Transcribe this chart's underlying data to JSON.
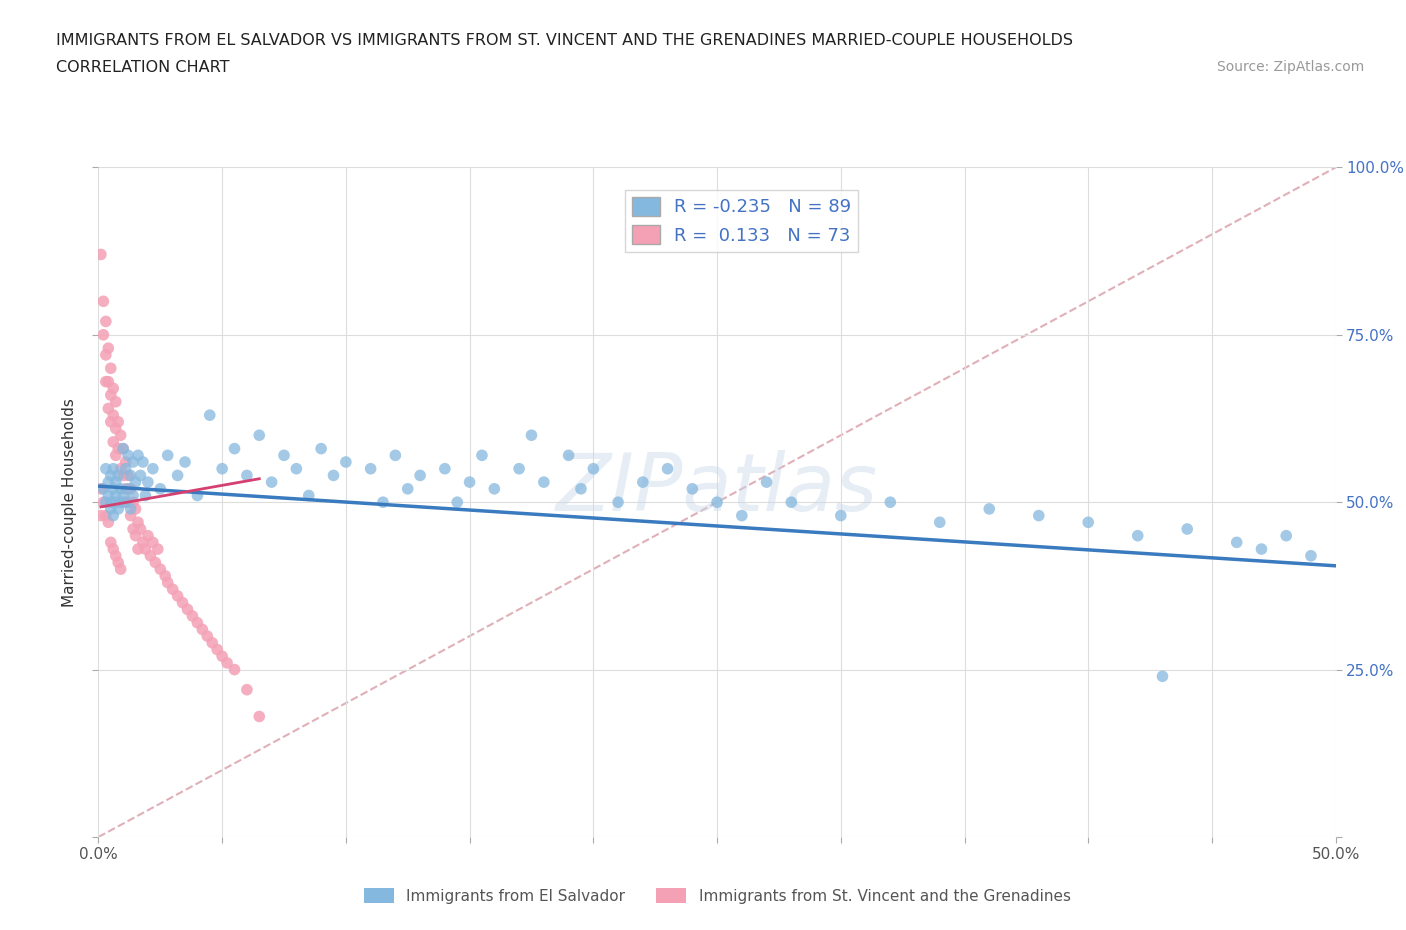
{
  "title_line1": "IMMIGRANTS FROM EL SALVADOR VS IMMIGRANTS FROM ST. VINCENT AND THE GRENADINES MARRIED-COUPLE HOUSEHOLDS",
  "title_line2": "CORRELATION CHART",
  "source": "Source: ZipAtlas.com",
  "ylabel": "Married-couple Households",
  "xlim": [
    0.0,
    0.5
  ],
  "ylim": [
    0.0,
    1.0
  ],
  "xticks": [
    0.0,
    0.05,
    0.1,
    0.15,
    0.2,
    0.25,
    0.3,
    0.35,
    0.4,
    0.45,
    0.5
  ],
  "xticklabels_show": [
    "0.0%",
    "",
    "",
    "",
    "",
    "",
    "",
    "",
    "",
    "",
    "50.0%"
  ],
  "yticks": [
    0.0,
    0.25,
    0.5,
    0.75,
    1.0
  ],
  "yticklabels_right": [
    "",
    "25.0%",
    "50.0%",
    "75.0%",
    "100.0%"
  ],
  "blue_color": "#85b8de",
  "pink_color": "#f4a0b5",
  "blue_line_color": "#3a7abf",
  "pink_line_color": "#d44070",
  "diag_color": "#e0b0b8",
  "R_blue": -0.235,
  "N_blue": 89,
  "R_pink": 0.133,
  "N_pink": 73,
  "legend_blue_label": "Immigrants from El Salvador",
  "legend_pink_label": "Immigrants from St. Vincent and the Grenadines",
  "watermark": "ZIPatlas",
  "blue_scatter_x": [
    0.002,
    0.003,
    0.003,
    0.004,
    0.004,
    0.005,
    0.005,
    0.005,
    0.006,
    0.006,
    0.006,
    0.007,
    0.007,
    0.007,
    0.008,
    0.008,
    0.009,
    0.009,
    0.01,
    0.01,
    0.011,
    0.011,
    0.012,
    0.012,
    0.013,
    0.013,
    0.014,
    0.014,
    0.015,
    0.016,
    0.017,
    0.018,
    0.019,
    0.02,
    0.022,
    0.025,
    0.028,
    0.032,
    0.035,
    0.04,
    0.045,
    0.05,
    0.055,
    0.06,
    0.065,
    0.07,
    0.075,
    0.08,
    0.085,
    0.09,
    0.095,
    0.1,
    0.11,
    0.115,
    0.12,
    0.125,
    0.13,
    0.14,
    0.145,
    0.15,
    0.155,
    0.16,
    0.17,
    0.175,
    0.18,
    0.19,
    0.195,
    0.2,
    0.21,
    0.22,
    0.23,
    0.24,
    0.25,
    0.26,
    0.27,
    0.28,
    0.3,
    0.32,
    0.34,
    0.36,
    0.38,
    0.4,
    0.42,
    0.44,
    0.46,
    0.47,
    0.48,
    0.49,
    0.43
  ],
  "blue_scatter_y": [
    0.52,
    0.5,
    0.55,
    0.51,
    0.53,
    0.5,
    0.54,
    0.49,
    0.52,
    0.55,
    0.48,
    0.51,
    0.53,
    0.5,
    0.54,
    0.49,
    0.52,
    0.5,
    0.58,
    0.51,
    0.55,
    0.5,
    0.57,
    0.52,
    0.54,
    0.49,
    0.56,
    0.51,
    0.53,
    0.57,
    0.54,
    0.56,
    0.51,
    0.53,
    0.55,
    0.52,
    0.57,
    0.54,
    0.56,
    0.51,
    0.63,
    0.55,
    0.58,
    0.54,
    0.6,
    0.53,
    0.57,
    0.55,
    0.51,
    0.58,
    0.54,
    0.56,
    0.55,
    0.5,
    0.57,
    0.52,
    0.54,
    0.55,
    0.5,
    0.53,
    0.57,
    0.52,
    0.55,
    0.6,
    0.53,
    0.57,
    0.52,
    0.55,
    0.5,
    0.53,
    0.55,
    0.52,
    0.5,
    0.48,
    0.53,
    0.5,
    0.48,
    0.5,
    0.47,
    0.49,
    0.48,
    0.47,
    0.45,
    0.46,
    0.44,
    0.43,
    0.45,
    0.42,
    0.24
  ],
  "pink_scatter_x": [
    0.001,
    0.001,
    0.001,
    0.002,
    0.002,
    0.002,
    0.003,
    0.003,
    0.003,
    0.003,
    0.004,
    0.004,
    0.004,
    0.004,
    0.005,
    0.005,
    0.005,
    0.005,
    0.006,
    0.006,
    0.006,
    0.006,
    0.007,
    0.007,
    0.007,
    0.007,
    0.008,
    0.008,
    0.008,
    0.009,
    0.009,
    0.009,
    0.01,
    0.01,
    0.01,
    0.011,
    0.011,
    0.012,
    0.012,
    0.013,
    0.013,
    0.014,
    0.014,
    0.015,
    0.015,
    0.016,
    0.016,
    0.017,
    0.018,
    0.019,
    0.02,
    0.021,
    0.022,
    0.023,
    0.024,
    0.025,
    0.027,
    0.028,
    0.03,
    0.032,
    0.034,
    0.036,
    0.038,
    0.04,
    0.042,
    0.044,
    0.046,
    0.048,
    0.05,
    0.052,
    0.055,
    0.06,
    0.065
  ],
  "pink_scatter_y": [
    0.87,
    0.52,
    0.48,
    0.8,
    0.75,
    0.5,
    0.77,
    0.72,
    0.68,
    0.48,
    0.73,
    0.68,
    0.64,
    0.47,
    0.7,
    0.66,
    0.62,
    0.44,
    0.67,
    0.63,
    0.59,
    0.43,
    0.65,
    0.61,
    0.57,
    0.42,
    0.62,
    0.58,
    0.41,
    0.6,
    0.55,
    0.4,
    0.58,
    0.54,
    0.5,
    0.56,
    0.52,
    0.54,
    0.5,
    0.52,
    0.48,
    0.5,
    0.46,
    0.49,
    0.45,
    0.47,
    0.43,
    0.46,
    0.44,
    0.43,
    0.45,
    0.42,
    0.44,
    0.41,
    0.43,
    0.4,
    0.39,
    0.38,
    0.37,
    0.36,
    0.35,
    0.34,
    0.33,
    0.32,
    0.31,
    0.3,
    0.29,
    0.28,
    0.27,
    0.26,
    0.25,
    0.22,
    0.18
  ],
  "blue_trend_x": [
    0.0,
    0.5
  ],
  "blue_trend_y": [
    0.524,
    0.405
  ],
  "pink_trend_x": [
    0.001,
    0.065
  ],
  "pink_trend_y": [
    0.493,
    0.535
  ]
}
